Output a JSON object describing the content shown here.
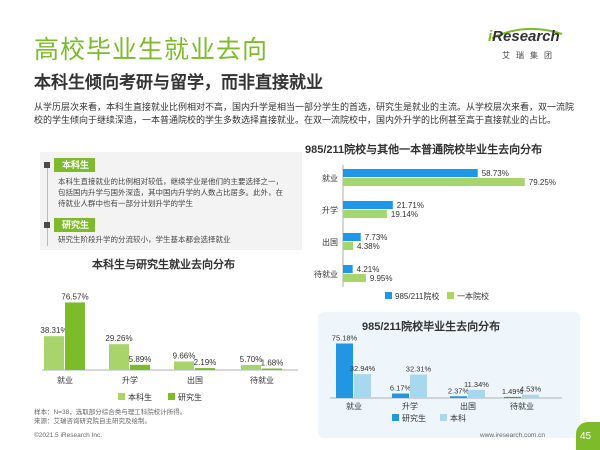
{
  "header": {
    "title": "高校毕业生就业去向",
    "subtitle": "本科生倾向考研与留学，而非直接就业",
    "logo_brand_i": "i",
    "logo_brand": "Research",
    "logo_cn": "艾瑞集团"
  },
  "intro": "从学历层次来看，本科生直接就业比例相对不高，国内升学是相当一部分学生的首选，研究生是就业的主流。从学校层次来看，双一流院校的学生倾向于继续深造，一本普通院校的学生多数选择直接就业。在双一流院校中，国内外升学的比例甚至高于直接就业的占比。",
  "notes": [
    {
      "tag": "本科生",
      "text": "本科生直接就业的比例相对较低，继续学业是他们的主要选择之一，包括国内升学与国外深造，其中国内升学的人数占比居多。此外，在待就业人群中也有一部分计划升学的学生"
    },
    {
      "tag": "研究生",
      "text": "研究生阶段升学的分流较小，学生基本都会选择就业"
    }
  ],
  "colors": {
    "accent_green": "#7dbb2a",
    "light_green": "#a9d46c",
    "blue": "#2196e3",
    "light_blue": "#a8d8ef",
    "dark": "#4a4a4a"
  },
  "chart_data": [
    {
      "type": "bar",
      "title": "本科生与研究生就业去向分布",
      "categories": [
        "就业",
        "升学",
        "出国",
        "待就业"
      ],
      "series": [
        {
          "name": "本科生",
          "values": [
            38.31,
            29.26,
            9.66,
            5.7
          ],
          "labels": [
            "38.31%",
            "29.26%",
            "9.66%",
            "5.70%"
          ]
        },
        {
          "name": "研究生",
          "values": [
            76.57,
            5.89,
            2.19,
            1.68
          ],
          "labels": [
            "76.57%",
            "5.89%",
            "2.19%",
            "1.68%"
          ]
        }
      ],
      "ylim": [
        0,
        85
      ],
      "legend": "bottom"
    },
    {
      "type": "bar",
      "orientation": "horizontal",
      "title": "985/211院校与其他一本普通院校毕业生去向分布",
      "categories": [
        "就业",
        "升学",
        "出国",
        "待就业"
      ],
      "series": [
        {
          "name": "985/211院校",
          "values": [
            58.73,
            21.71,
            7.73,
            4.21
          ],
          "labels": [
            "58.73%",
            "21.71%",
            "7.73%",
            "4.21%"
          ]
        },
        {
          "name": "一本院校",
          "values": [
            79.25,
            19.14,
            4.38,
            9.95
          ],
          "labels": [
            "79.25%",
            "19.14%",
            "4.38%",
            "9.95%"
          ]
        }
      ],
      "xlim": [
        0,
        85
      ],
      "legend": "bottom"
    },
    {
      "type": "bar",
      "title": "985/211院校毕业生去向分布",
      "categories": [
        "就业",
        "升学",
        "出国",
        "待就业"
      ],
      "series": [
        {
          "name": "研究生",
          "values": [
            75.18,
            6.17,
            2.37,
            1.49
          ],
          "labels": [
            "75.18%",
            "6.17%",
            "2.37%",
            "1.49%"
          ]
        },
        {
          "name": "本科",
          "values": [
            32.94,
            32.31,
            11.34,
            4.53
          ],
          "labels": [
            "32.94%",
            "32.31%",
            "11.34%",
            "4.53%"
          ]
        }
      ],
      "ylim": [
        0,
        80
      ],
      "legend": "bottom"
    }
  ],
  "footer": {
    "footnote_line1": "样本：N=38，选取部分综合类与理工科院校计所得。",
    "footnote_line2": "来源：艾瑞咨询研究院自主研究及绘制。",
    "copyright": "©2021.5 iResearch Inc.",
    "website": "www.iresearch.com.cn",
    "page_number": "45"
  }
}
